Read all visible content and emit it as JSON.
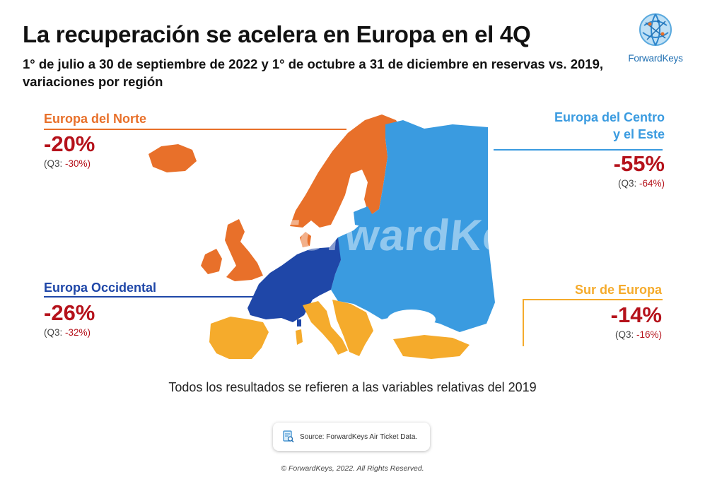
{
  "title": "La recuperación se acelera en Europa en el 4Q",
  "subtitle": "1° de julio a 30 de septiembre de 2022 y 1° de octubre a 31 de diciembre en reservas vs. 2019, variaciones por región",
  "logo": {
    "text": "ForwardKeys",
    "icon": "globe-logo-icon"
  },
  "watermark": "ForwardKeys",
  "colors": {
    "north": "#e8702a",
    "west": "#1f47a8",
    "central_east": "#3a9be0",
    "south": "#f5ab2c",
    "value": "#b5121b"
  },
  "regions": {
    "north": {
      "name": "Europa del Norte",
      "value": "-20%",
      "q3_label": "(Q3:",
      "q3_value": "-30%)"
    },
    "central_east": {
      "name_line1": "Europa del Centro",
      "name_line2": "y el Este",
      "value": "-55%",
      "q3_label": "(Q3:",
      "q3_value": "-64%)"
    },
    "west": {
      "name": "Europa Occidental",
      "value": "-26%",
      "q3_label": "(Q3:",
      "q3_value": "-32%)"
    },
    "south": {
      "name": "Sur de Europa",
      "value": "-14%",
      "q3_label": "(Q3:",
      "q3_value": "-16%)"
    }
  },
  "footnote": "Todos los resultados se refieren a las variables relativas del 2019",
  "source": {
    "icon": "document-search-icon",
    "text": "Source: ForwardKeys Air Ticket Data."
  },
  "copyright": "© ForwardKeys, 2022. All Rights Reserved."
}
